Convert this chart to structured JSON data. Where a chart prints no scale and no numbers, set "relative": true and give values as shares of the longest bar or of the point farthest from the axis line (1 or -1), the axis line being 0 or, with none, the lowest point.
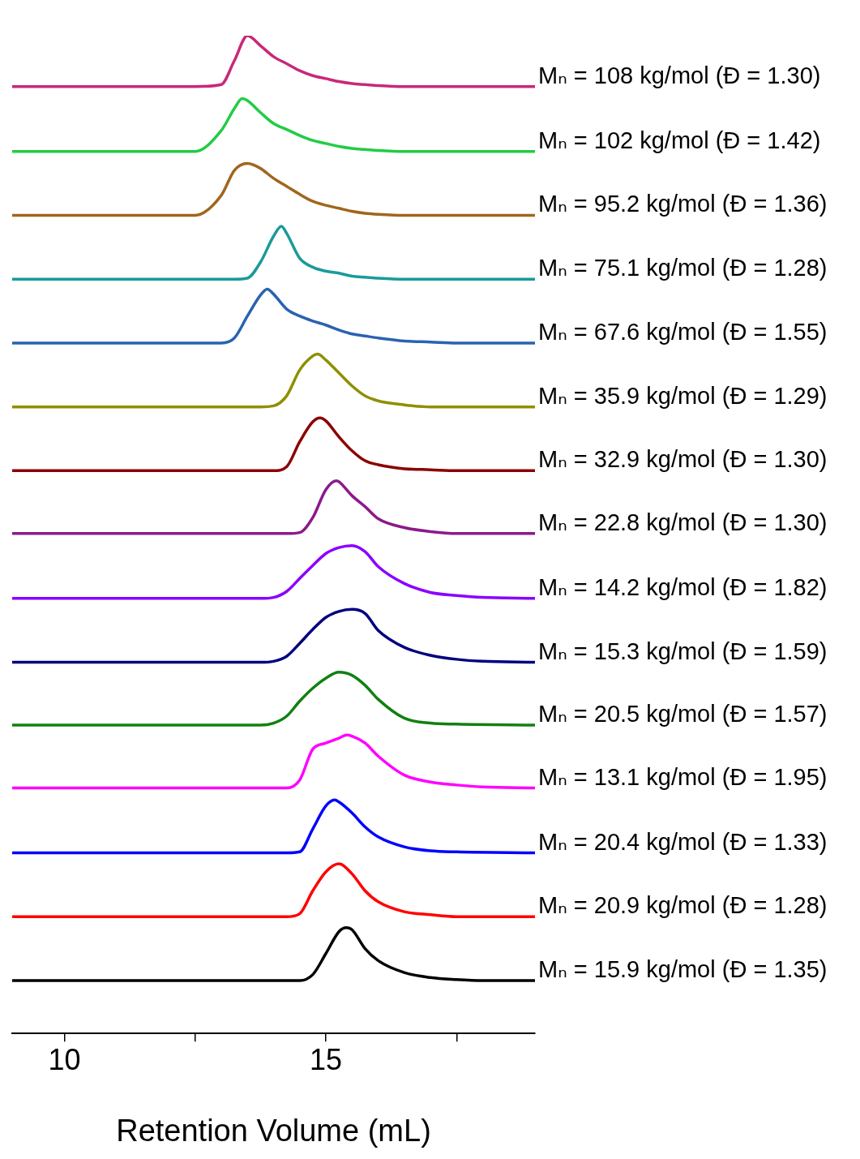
{
  "chart_data": {
    "type": "line",
    "relative": true,
    "xlabel": "Retention Volume (mL)",
    "xlim": [
      9,
      19
    ],
    "xticks": [
      10,
      {
        "value": 12.5,
        "label": null
      },
      15,
      {
        "value": 17.5,
        "label": null
      }
    ],
    "legend": false,
    "marker": "none",
    "line_style": "solid",
    "series": [
      {
        "name": "Mₙ = 108 kg/mol (Đ = 1.30)",
        "color": "#c8287a",
        "x": [
          9,
          12.5,
          13,
          13.25,
          13.5,
          13.75,
          14,
          14.25,
          14.5,
          14.75,
          15,
          15.25,
          15.5,
          15.75,
          16,
          16.5,
          19
        ],
        "values": [
          0.949,
          0.949,
          0.951,
          0.975,
          1.0,
          0.99,
          0.979,
          0.972,
          0.965,
          0.96,
          0.957,
          0.954,
          0.952,
          0.951,
          0.95,
          0.949,
          0.949
        ]
      },
      {
        "name": "Mₙ = 102 kg/mol (Đ = 1.42)",
        "color": "#22cc44",
        "x": [
          9,
          12.5,
          13,
          13.25,
          13.4,
          13.5,
          13.75,
          14,
          14.25,
          14.5,
          14.75,
          15,
          15.25,
          15.5,
          15.75,
          16,
          16.5,
          19
        ],
        "values": [
          0.884,
          0.884,
          0.905,
          0.927,
          0.937,
          0.935,
          0.923,
          0.912,
          0.906,
          0.9,
          0.895,
          0.892,
          0.889,
          0.887,
          0.886,
          0.885,
          0.884,
          0.884
        ]
      },
      {
        "name": "Mₙ = 95.2 kg/mol (Đ = 1.36)",
        "color": "#a0661c",
        "x": [
          9,
          12.5,
          13,
          13.25,
          13.5,
          13.75,
          14,
          14.25,
          14.5,
          14.75,
          15,
          15.25,
          15.5,
          15.75,
          16,
          16.5,
          19
        ],
        "values": [
          0.82,
          0.82,
          0.84,
          0.865,
          0.872,
          0.867,
          0.857,
          0.849,
          0.841,
          0.834,
          0.83,
          0.827,
          0.824,
          0.822,
          0.821,
          0.82,
          0.82
        ]
      },
      {
        "name": "Mₙ = 75.1 kg/mol (Đ = 1.28)",
        "color": "#1a9a9a",
        "x": [
          9,
          13.25,
          13.5,
          13.75,
          14,
          14.15,
          14.25,
          14.5,
          14.75,
          15,
          15.25,
          15.5,
          15.75,
          16,
          16.5,
          19
        ],
        "values": [
          0.756,
          0.756,
          0.757,
          0.773,
          0.799,
          0.809,
          0.802,
          0.777,
          0.768,
          0.764,
          0.762,
          0.759,
          0.758,
          0.757,
          0.756,
          0.756
        ]
      },
      {
        "name": "Mₙ = 67.6 kg/mol (Đ = 1.55)",
        "color": "#2a62b0",
        "x": [
          9,
          13,
          13.25,
          13.5,
          13.75,
          13.88,
          14,
          14.25,
          14.5,
          14.75,
          15,
          15.25,
          15.5,
          15.75,
          16,
          16.5,
          17,
          17.5,
          19
        ],
        "values": [
          0.692,
          0.692,
          0.697,
          0.719,
          0.74,
          0.746,
          0.741,
          0.726,
          0.719,
          0.714,
          0.71,
          0.705,
          0.701,
          0.699,
          0.697,
          0.694,
          0.693,
          0.692,
          0.692
        ]
      },
      {
        "name": "Mₙ = 35.9 kg/mol (Đ = 1.29)",
        "color": "#8f8f00",
        "x": [
          9,
          13.75,
          14,
          14.25,
          14.5,
          14.75,
          14.84,
          15,
          15.25,
          15.5,
          15.75,
          16,
          16.5,
          17,
          19
        ],
        "values": [
          0.628,
          0.628,
          0.629,
          0.639,
          0.665,
          0.679,
          0.681,
          0.675,
          0.662,
          0.649,
          0.639,
          0.634,
          0.63,
          0.628,
          0.628
        ]
      },
      {
        "name": "Mₙ = 32.9 kg/mol (Đ = 1.30)",
        "color": "#8b0000",
        "x": [
          9,
          14,
          14.25,
          14.5,
          14.75,
          14.89,
          15,
          15.25,
          15.5,
          15.75,
          16,
          16.5,
          17,
          17.5,
          19
        ],
        "values": [
          0.564,
          0.564,
          0.568,
          0.593,
          0.613,
          0.617,
          0.614,
          0.598,
          0.584,
          0.574,
          0.57,
          0.566,
          0.565,
          0.564,
          0.564
        ]
      },
      {
        "name": "Mₙ = 22.8 kg/mol (Đ = 1.30)",
        "color": "#8b1a8b",
        "x": [
          9,
          14.25,
          14.5,
          14.75,
          15,
          15.2,
          15.25,
          15.5,
          15.75,
          16,
          16.5,
          17,
          17.5,
          19
        ],
        "values": [
          0.501,
          0.501,
          0.502,
          0.517,
          0.545,
          0.554,
          0.553,
          0.539,
          0.528,
          0.516,
          0.507,
          0.503,
          0.501,
          0.501
        ]
      },
      {
        "name": "Mₙ = 14.2 kg/mol (Đ = 1.82)",
        "color": "#8a00ff",
        "x": [
          9,
          13.75,
          14,
          14.25,
          14.5,
          14.75,
          15,
          15.25,
          15.5,
          15.75,
          16,
          16.5,
          17,
          17.5,
          18,
          19
        ],
        "values": [
          0.436,
          0.436,
          0.437,
          0.443,
          0.456,
          0.469,
          0.481,
          0.487,
          0.489,
          0.483,
          0.468,
          0.451,
          0.442,
          0.439,
          0.437,
          0.436
        ]
      },
      {
        "name": "Mₙ = 15.3 kg/mol (Đ = 1.59)",
        "color": "#000080",
        "x": [
          9,
          13.75,
          14,
          14.25,
          14.5,
          14.75,
          15,
          15.25,
          15.5,
          15.75,
          16,
          16.5,
          17,
          17.5,
          18,
          19
        ],
        "values": [
          0.372,
          0.372,
          0.373,
          0.378,
          0.391,
          0.405,
          0.417,
          0.423,
          0.425,
          0.421,
          0.404,
          0.387,
          0.379,
          0.375,
          0.373,
          0.372
        ]
      },
      {
        "name": "Mₙ = 20.5 kg/mol (Đ = 1.57)",
        "color": "#118011",
        "x": [
          9,
          13.75,
          14,
          14.25,
          14.5,
          14.75,
          15,
          15.25,
          15.5,
          15.75,
          16,
          16.5,
          17,
          17.5,
          19
        ],
        "values": [
          0.309,
          0.309,
          0.311,
          0.318,
          0.333,
          0.346,
          0.356,
          0.362,
          0.359,
          0.349,
          0.335,
          0.316,
          0.311,
          0.31,
          0.309
        ]
      },
      {
        "name": "Mₙ = 13.1 kg/mol (Đ = 1.95)",
        "color": "#ff00ff",
        "x": [
          9,
          14.25,
          14.5,
          14.75,
          15,
          15.25,
          15.4,
          15.5,
          15.75,
          16,
          16.5,
          17,
          17.5,
          18,
          19
        ],
        "values": [
          0.246,
          0.246,
          0.254,
          0.285,
          0.291,
          0.296,
          0.299,
          0.298,
          0.291,
          0.278,
          0.259,
          0.252,
          0.249,
          0.247,
          0.246
        ]
      },
      {
        "name": "Mₙ = 20.4 kg/mol (Đ = 1.33)",
        "color": "#0000ff",
        "x": [
          9,
          14.25,
          14.5,
          14.75,
          15,
          15.17,
          15.25,
          15.5,
          15.75,
          16,
          16.5,
          17,
          17.5,
          19
        ],
        "values": [
          0.181,
          0.181,
          0.182,
          0.205,
          0.228,
          0.234,
          0.232,
          0.221,
          0.207,
          0.197,
          0.187,
          0.183,
          0.182,
          0.181
        ]
      },
      {
        "name": "Mₙ = 20.9 kg/mol (Đ = 1.28)",
        "color": "#ff0000",
        "x": [
          9,
          14.25,
          14.5,
          14.75,
          15,
          15.25,
          15.5,
          15.75,
          16,
          16.5,
          17,
          17.5,
          19
        ],
        "values": [
          0.117,
          0.117,
          0.12,
          0.143,
          0.162,
          0.17,
          0.16,
          0.143,
          0.132,
          0.122,
          0.119,
          0.117,
          0.117
        ]
      },
      {
        "name": "Mₙ = 15.9 kg/mol (Đ = 1.35)",
        "color": "#000000",
        "x": [
          9,
          14.5,
          14.75,
          15,
          15.25,
          15.39,
          15.5,
          15.75,
          16,
          16.5,
          17,
          17.5,
          18,
          19
        ],
        "values": [
          0.053,
          0.053,
          0.059,
          0.08,
          0.102,
          0.106,
          0.104,
          0.085,
          0.073,
          0.061,
          0.056,
          0.054,
          0.053,
          0.053
        ]
      }
    ]
  }
}
